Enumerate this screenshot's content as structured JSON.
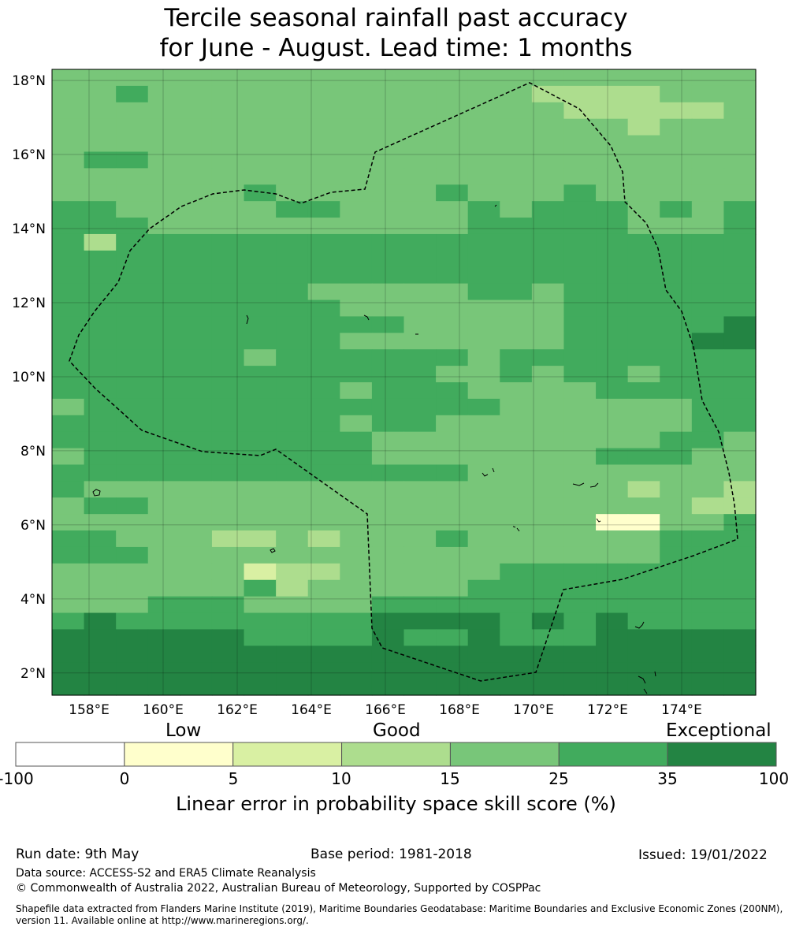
{
  "title_line1": "Tercile seasonal rainfall past accuracy",
  "title_line2": "for June - August. Lead time: 1 months",
  "map": {
    "lon_ticks": [
      "158°E",
      "160°E",
      "162°E",
      "164°E",
      "166°E",
      "168°E",
      "170°E",
      "172°E",
      "174°E"
    ],
    "lat_ticks": [
      "18°N",
      "16°N",
      "14°N",
      "12°N",
      "10°N",
      "8°N",
      "6°N",
      "4°N",
      "2°N"
    ],
    "lon_range": [
      157.0,
      176.0
    ],
    "lat_range": [
      1.4,
      18.3
    ],
    "grid": true,
    "colors": [
      "#ffffcc",
      "#d9f0a3",
      "#addd8e",
      "#78c679",
      "#41ab5d",
      "#238443"
    ],
    "rows": [
      "3333333333333333333333",
      "3343333333333332222333",
      "3333333333333333222223",
      "3333333333333333332333",
      "3333333333333333333333",
      "3443333333333333333333",
      "3333333333333333333333",
      "3333334333334333433333",
      "4433333443333434443434",
      "4443333333333444443334",
      "4244444444444444444444",
      "4444444444444444444444",
      "4444444444444444444444",
      "4444444433333443444444",
      "4444444443333333444444",
      "4444444444433333444445",
      "4444444443333333444455",
      "4444443444444344444444",
      "4444444444443343443444",
      "4444444443444333344444",
      "3444444444444433333344",
      "4444444443443333333344",
      "4444444444333333333443",
      "3444444444333333344433",
      "4444444444444333333333",
      "4333333333333333332332",
      "3443333333333333333322",
      "3333333333333333300334",
      "4433322323334333333444",
      "4443333333333333333444",
      "3333331223333344444444",
      "3333334233333444444444",
      "3334443333444444444444",
      "4544444444555545454444",
      "5555554444544544455555",
      "5555555555555555555555",
      "5555555555555555555555",
      "5555555555555555555555"
    ],
    "lon_cells": 22,
    "lat_cells": 38
  },
  "colorbar": {
    "category_labels": [
      "Low",
      "Good",
      "Exceptional"
    ],
    "tick_labels": [
      "-100",
      "0",
      "5",
      "10",
      "15",
      "25",
      "35",
      "100"
    ],
    "colors": [
      "#ffffff",
      "#ffffcc",
      "#d9f0a3",
      "#addd8e",
      "#78c679",
      "#41ab5d",
      "#238443"
    ],
    "title": "Linear error in probability space skill score (%)"
  },
  "footer": {
    "run_date": "Run date: 9th May",
    "base_period": "Base period: 1981-2018",
    "issued": "Issued: 19/01/2022",
    "data_source": "Data source: ACCESS-S2 and ERA5 Climate Reanalysis",
    "copyright": "© Commonwealth of Australia 2022, Australian Bureau of Meteorology, Supported by COSPPac",
    "shapefile_line1": "Shapefile data extracted from Flanders Marine Institute (2019), Maritime Boundaries Geodatabase: Maritime Boundaries and Exclusive Economic Zones (200NM),",
    "shapefile_line2": "version 11. Available online at http://www.marineregions.org/."
  }
}
